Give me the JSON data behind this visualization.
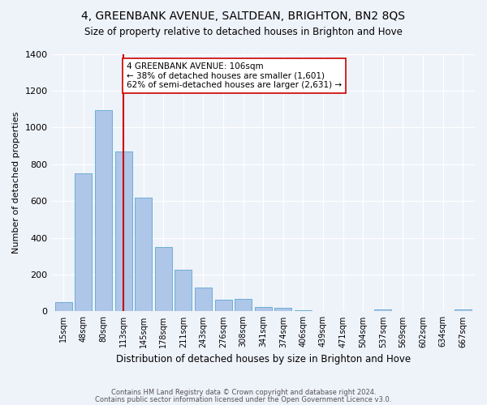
{
  "title": "4, GREENBANK AVENUE, SALTDEAN, BRIGHTON, BN2 8QS",
  "subtitle": "Size of property relative to detached houses in Brighton and Hove",
  "xlabel": "Distribution of detached houses by size in Brighton and Hove",
  "ylabel": "Number of detached properties",
  "bar_labels": [
    "15sqm",
    "48sqm",
    "80sqm",
    "113sqm",
    "145sqm",
    "178sqm",
    "211sqm",
    "243sqm",
    "276sqm",
    "308sqm",
    "341sqm",
    "374sqm",
    "406sqm",
    "439sqm",
    "471sqm",
    "504sqm",
    "537sqm",
    "569sqm",
    "602sqm",
    "634sqm",
    "667sqm"
  ],
  "bar_values": [
    50,
    750,
    1095,
    870,
    620,
    350,
    225,
    130,
    65,
    70,
    25,
    18,
    5,
    0,
    0,
    0,
    10,
    0,
    0,
    0,
    10
  ],
  "bar_color": "#aec6e8",
  "bar_edge_color": "#6baed6",
  "vline_x": 3,
  "vline_color": "#cc0000",
  "annotation_text": "4 GREENBANK AVENUE: 106sqm\n← 38% of detached houses are smaller (1,601)\n62% of semi-detached houses are larger (2,631) →",
  "annotation_box_color": "#ffffff",
  "annotation_box_edge": "#cc0000",
  "ylim": [
    0,
    1400
  ],
  "yticks": [
    0,
    200,
    400,
    600,
    800,
    1000,
    1200,
    1400
  ],
  "footnote1": "Contains HM Land Registry data © Crown copyright and database right 2024.",
  "footnote2": "Contains public sector information licensed under the Open Government Licence v3.0.",
  "bg_color": "#eef2f9"
}
